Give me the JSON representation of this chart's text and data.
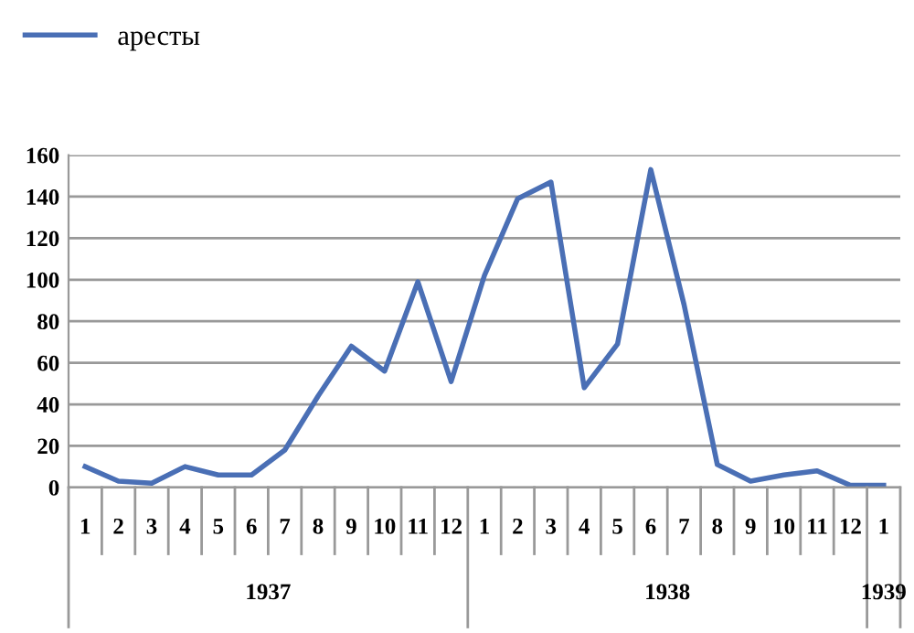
{
  "chart_data": {
    "type": "line",
    "categories": [
      "1",
      "2",
      "3",
      "4",
      "5",
      "6",
      "7",
      "8",
      "9",
      "10",
      "11",
      "12",
      "1",
      "2",
      "3",
      "4",
      "5",
      "6",
      "7",
      "8",
      "9",
      "10",
      "11",
      "12",
      "1"
    ],
    "series": [
      {
        "name": "аресты",
        "color": "#4a6fb5",
        "values": [
          10,
          3,
          2,
          10,
          6,
          6,
          18,
          44,
          68,
          56,
          99,
          51,
          102,
          139,
          147,
          48,
          69,
          153,
          88,
          11,
          3,
          6,
          8,
          1,
          1
        ]
      }
    ],
    "ylim": [
      0,
      160
    ],
    "yticks": [
      0,
      20,
      40,
      60,
      80,
      100,
      120,
      140,
      160
    ],
    "grid": "y",
    "legend": "top left",
    "marker": "none",
    "line_style": "solid",
    "annotations": [
      "1937",
      "1938",
      "1939"
    ]
  }
}
